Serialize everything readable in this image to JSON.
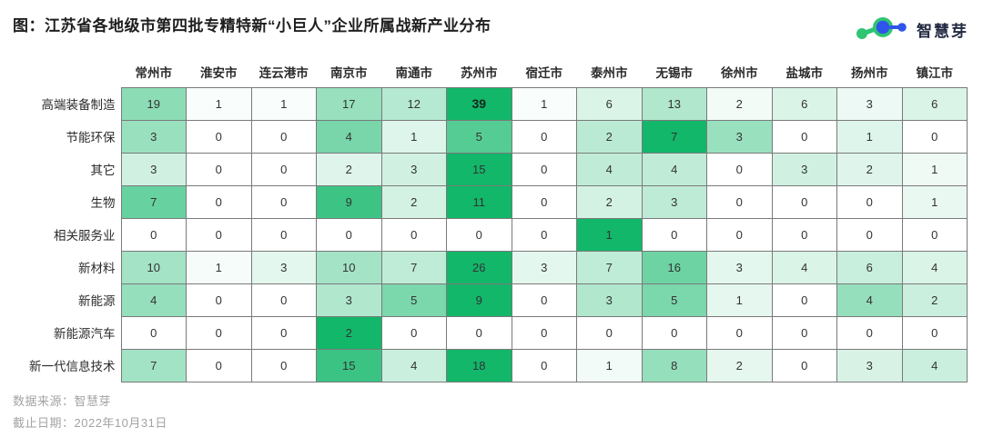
{
  "title": "图：江苏省各地级市第四批专精特新“小巨人”企业所属战新产业分布",
  "logo": {
    "text": "智慧芽",
    "icon": "molecule-icon",
    "green": "#2ec573",
    "blue": "#2f54eb"
  },
  "footer": {
    "source_label": "数据来源：智慧芽",
    "date_label": "截止日期：2022年10月31日"
  },
  "colors": {
    "heat_min": "#ffffff",
    "heat_max": "#12b76a",
    "grid_line": "#7a7a7a"
  },
  "chart_data": {
    "type": "heatmap",
    "title": "图：江苏省各地级市第四批专精特新“小巨人”企业所属战新产业分布",
    "columns": [
      "常州市",
      "淮安市",
      "连云港市",
      "南京市",
      "南通市",
      "苏州市",
      "宿迁市",
      "泰州市",
      "无锡市",
      "徐州市",
      "盐城市",
      "扬州市",
      "镇江市"
    ],
    "rows": [
      "高端装备制造",
      "节能环保",
      "其它",
      "生物",
      "相关服务业",
      "新材料",
      "新能源",
      "新能源汽车",
      "新一代信息技术"
    ],
    "values": [
      [
        19,
        1,
        1,
        17,
        12,
        39,
        1,
        6,
        13,
        2,
        6,
        3,
        6
      ],
      [
        3,
        0,
        0,
        4,
        1,
        5,
        0,
        2,
        7,
        3,
        0,
        1,
        0
      ],
      [
        3,
        0,
        0,
        2,
        3,
        15,
        0,
        4,
        4,
        0,
        3,
        2,
        1
      ],
      [
        7,
        0,
        0,
        9,
        2,
        11,
        0,
        2,
        3,
        0,
        0,
        0,
        1
      ],
      [
        0,
        0,
        0,
        0,
        0,
        0,
        0,
        1,
        0,
        0,
        0,
        0,
        0
      ],
      [
        10,
        1,
        3,
        10,
        7,
        26,
        3,
        7,
        16,
        3,
        4,
        6,
        4
      ],
      [
        4,
        0,
        0,
        3,
        5,
        9,
        0,
        3,
        5,
        1,
        0,
        4,
        2
      ],
      [
        0,
        0,
        0,
        2,
        0,
        0,
        0,
        0,
        0,
        0,
        0,
        0,
        0
      ],
      [
        7,
        0,
        0,
        15,
        4,
        18,
        0,
        1,
        8,
        2,
        0,
        3,
        4
      ]
    ],
    "color_scale": "per-row: white (0) to green (row max)",
    "global_max": 39,
    "legend": "none",
    "grid": true
  }
}
